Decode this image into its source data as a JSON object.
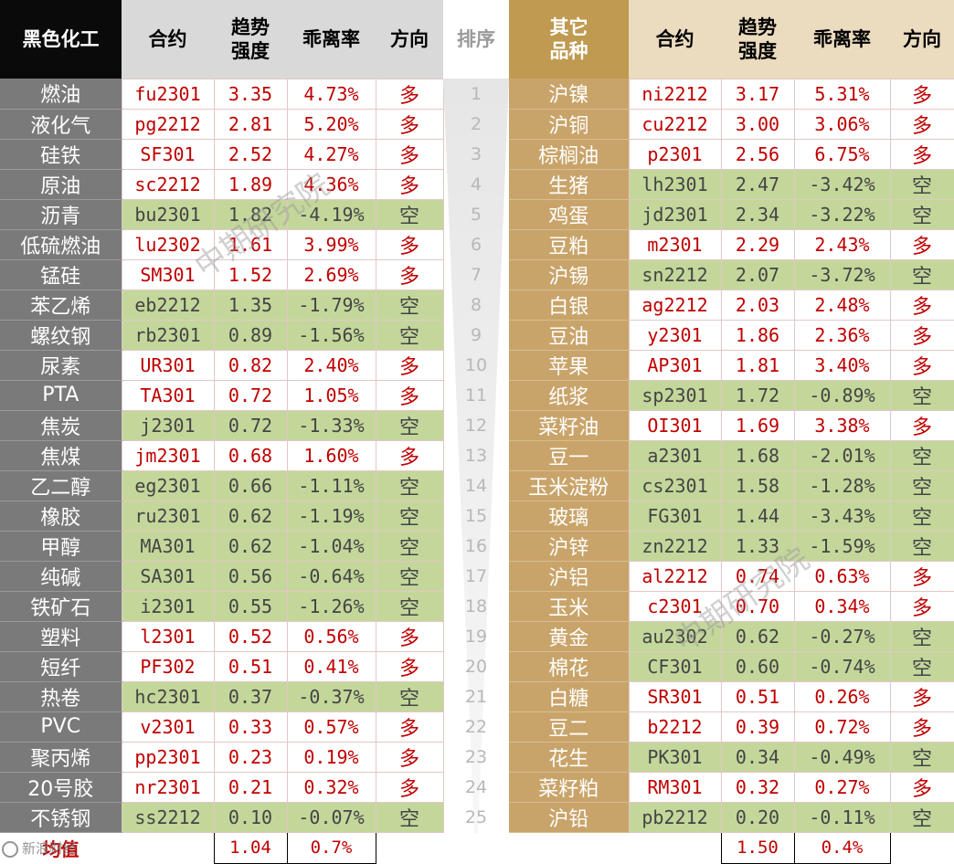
{
  "left_table": {
    "headers": {
      "name": "黑色化工",
      "contract": "合约",
      "strength": "趋势\n强度",
      "deviation": "乖离率",
      "direction": "方向"
    },
    "rows": [
      {
        "name": "燃油",
        "contract": "fu2301",
        "strength": "3.35",
        "deviation": "4.73%",
        "direction": "多"
      },
      {
        "name": "液化气",
        "contract": "pg2212",
        "strength": "2.81",
        "deviation": "5.20%",
        "direction": "多"
      },
      {
        "name": "硅铁",
        "contract": "SF301",
        "strength": "2.52",
        "deviation": "4.27%",
        "direction": "多"
      },
      {
        "name": "原油",
        "contract": "sc2212",
        "strength": "1.89",
        "deviation": "4.36%",
        "direction": "多"
      },
      {
        "name": "沥青",
        "contract": "bu2301",
        "strength": "1.82",
        "deviation": "-4.19%",
        "direction": "空"
      },
      {
        "name": "低硫燃油",
        "contract": "lu2302",
        "strength": "1.61",
        "deviation": "3.99%",
        "direction": "多"
      },
      {
        "name": "锰硅",
        "contract": "SM301",
        "strength": "1.52",
        "deviation": "2.69%",
        "direction": "多"
      },
      {
        "name": "苯乙烯",
        "contract": "eb2212",
        "strength": "1.35",
        "deviation": "-1.79%",
        "direction": "空"
      },
      {
        "name": "螺纹钢",
        "contract": "rb2301",
        "strength": "0.89",
        "deviation": "-1.56%",
        "direction": "空"
      },
      {
        "name": "尿素",
        "contract": "UR301",
        "strength": "0.82",
        "deviation": "2.40%",
        "direction": "多"
      },
      {
        "name": "PTA",
        "contract": "TA301",
        "strength": "0.72",
        "deviation": "1.05%",
        "direction": "多"
      },
      {
        "name": "焦炭",
        "contract": "j2301",
        "strength": "0.72",
        "deviation": "-1.33%",
        "direction": "空"
      },
      {
        "name": "焦煤",
        "contract": "jm2301",
        "strength": "0.68",
        "deviation": "1.60%",
        "direction": "多"
      },
      {
        "name": "乙二醇",
        "contract": "eg2301",
        "strength": "0.66",
        "deviation": "-1.11%",
        "direction": "空"
      },
      {
        "name": "橡胶",
        "contract": "ru2301",
        "strength": "0.62",
        "deviation": "-1.19%",
        "direction": "空"
      },
      {
        "name": "甲醇",
        "contract": "MA301",
        "strength": "0.62",
        "deviation": "-1.04%",
        "direction": "空"
      },
      {
        "name": "纯碱",
        "contract": "SA301",
        "strength": "0.56",
        "deviation": "-0.64%",
        "direction": "空"
      },
      {
        "name": "铁矿石",
        "contract": "i2301",
        "strength": "0.55",
        "deviation": "-1.26%",
        "direction": "空"
      },
      {
        "name": "塑料",
        "contract": "l2301",
        "strength": "0.52",
        "deviation": "0.56%",
        "direction": "多"
      },
      {
        "name": "短纤",
        "contract": "PF302",
        "strength": "0.51",
        "deviation": "0.41%",
        "direction": "多"
      },
      {
        "name": "热卷",
        "contract": "hc2301",
        "strength": "0.37",
        "deviation": "-0.37%",
        "direction": "空"
      },
      {
        "name": "PVC",
        "contract": "v2301",
        "strength": "0.33",
        "deviation": "0.57%",
        "direction": "多"
      },
      {
        "name": "聚丙烯",
        "contract": "pp2301",
        "strength": "0.23",
        "deviation": "0.19%",
        "direction": "多"
      },
      {
        "name": "20号胶",
        "contract": "nr2301",
        "strength": "0.21",
        "deviation": "0.32%",
        "direction": "多"
      },
      {
        "name": "不锈钢",
        "contract": "ss2212",
        "strength": "0.10",
        "deviation": "-0.07%",
        "direction": "空"
      }
    ],
    "avg": {
      "label": "均值",
      "strength": "1.04",
      "deviation": "0.7%"
    }
  },
  "rank": {
    "header": "排序",
    "values": [
      "1",
      "2",
      "3",
      "4",
      "5",
      "6",
      "7",
      "8",
      "9",
      "10",
      "11",
      "12",
      "13",
      "14",
      "15",
      "16",
      "17",
      "18",
      "19",
      "20",
      "21",
      "22",
      "23",
      "24",
      "25"
    ]
  },
  "right_table": {
    "headers": {
      "name": "其它\n品种",
      "contract": "合约",
      "strength": "趋势\n强度",
      "deviation": "乖离率",
      "direction": "方向"
    },
    "rows": [
      {
        "name": "沪镍",
        "contract": "ni2212",
        "strength": "3.17",
        "deviation": "5.31%",
        "direction": "多"
      },
      {
        "name": "沪铜",
        "contract": "cu2212",
        "strength": "3.00",
        "deviation": "3.06%",
        "direction": "多"
      },
      {
        "name": "棕榈油",
        "contract": "p2301",
        "strength": "2.56",
        "deviation": "6.75%",
        "direction": "多"
      },
      {
        "name": "生猪",
        "contract": "lh2301",
        "strength": "2.47",
        "deviation": "-3.42%",
        "direction": "空"
      },
      {
        "name": "鸡蛋",
        "contract": "jd2301",
        "strength": "2.34",
        "deviation": "-3.22%",
        "direction": "空"
      },
      {
        "name": "豆粕",
        "contract": "m2301",
        "strength": "2.29",
        "deviation": "2.43%",
        "direction": "多"
      },
      {
        "name": "沪锡",
        "contract": "sn2212",
        "strength": "2.07",
        "deviation": "-3.72%",
        "direction": "空"
      },
      {
        "name": "白银",
        "contract": "ag2212",
        "strength": "2.03",
        "deviation": "2.48%",
        "direction": "多"
      },
      {
        "name": "豆油",
        "contract": "y2301",
        "strength": "1.86",
        "deviation": "2.36%",
        "direction": "多"
      },
      {
        "name": "苹果",
        "contract": "AP301",
        "strength": "1.81",
        "deviation": "3.40%",
        "direction": "多"
      },
      {
        "name": "纸浆",
        "contract": "sp2301",
        "strength": "1.72",
        "deviation": "-0.89%",
        "direction": "空"
      },
      {
        "name": "菜籽油",
        "contract": "OI301",
        "strength": "1.69",
        "deviation": "3.38%",
        "direction": "多"
      },
      {
        "name": "豆一",
        "contract": "a2301",
        "strength": "1.68",
        "deviation": "-2.01%",
        "direction": "空"
      },
      {
        "name": "玉米淀粉",
        "contract": "cs2301",
        "strength": "1.58",
        "deviation": "-1.28%",
        "direction": "空"
      },
      {
        "name": "玻璃",
        "contract": "FG301",
        "strength": "1.44",
        "deviation": "-3.43%",
        "direction": "空"
      },
      {
        "name": "沪锌",
        "contract": "zn2212",
        "strength": "1.33",
        "deviation": "-1.59%",
        "direction": "空"
      },
      {
        "name": "沪铝",
        "contract": "al2212",
        "strength": "0.74",
        "deviation": "0.63%",
        "direction": "多"
      },
      {
        "name": "玉米",
        "contract": "c2301",
        "strength": "0.70",
        "deviation": "0.34%",
        "direction": "多"
      },
      {
        "name": "黄金",
        "contract": "au2302",
        "strength": "0.62",
        "deviation": "-0.27%",
        "direction": "空"
      },
      {
        "name": "棉花",
        "contract": "CF301",
        "strength": "0.60",
        "deviation": "-0.74%",
        "direction": "空"
      },
      {
        "name": "白糖",
        "contract": "SR301",
        "strength": "0.51",
        "deviation": "0.26%",
        "direction": "多"
      },
      {
        "name": "豆二",
        "contract": "b2212",
        "strength": "0.39",
        "deviation": "0.72%",
        "direction": "多"
      },
      {
        "name": "花生",
        "contract": "PK301",
        "strength": "0.34",
        "deviation": "-0.49%",
        "direction": "空"
      },
      {
        "name": "菜籽粕",
        "contract": "RM301",
        "strength": "0.32",
        "deviation": "0.27%",
        "direction": "多"
      },
      {
        "name": "沪铅",
        "contract": "pb2212",
        "strength": "0.20",
        "deviation": "-0.11%",
        "direction": "空"
      }
    ],
    "avg": {
      "strength": "1.50",
      "deviation": "0.4%"
    }
  },
  "watermarks": [
    "中期研究院",
    "中期研究院"
  ],
  "brand": "新浪财经"
}
